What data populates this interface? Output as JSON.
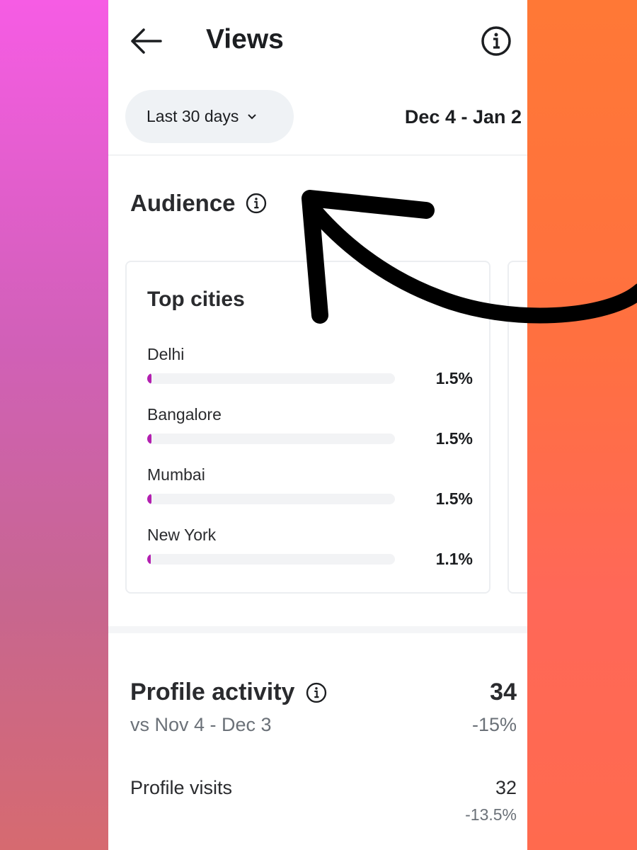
{
  "header": {
    "title": "Views",
    "back_icon": "arrow-left-icon",
    "info_icon": "info-icon"
  },
  "filter": {
    "range_label": "Last 30 days",
    "date_range": "Dec 4 - Jan 2"
  },
  "audience": {
    "title": "Audience",
    "top_cities": {
      "title": "Top cities",
      "accent": "#b31fb0",
      "items": [
        {
          "city": "Delhi",
          "value": "1.5%",
          "percent": 1.5
        },
        {
          "city": "Bangalore",
          "value": "1.5%",
          "percent": 1.5
        },
        {
          "city": "Mumbai",
          "value": "1.5%",
          "percent": 1.5
        },
        {
          "city": "New York",
          "value": "1.1%",
          "percent": 1.1
        }
      ]
    }
  },
  "profile_activity": {
    "title": "Profile activity",
    "value": "34",
    "comparison": "vs Nov 4 - Dec 3",
    "change": "-15%",
    "visits": {
      "label": "Profile visits",
      "value": "32",
      "change": "-13.5%"
    }
  }
}
